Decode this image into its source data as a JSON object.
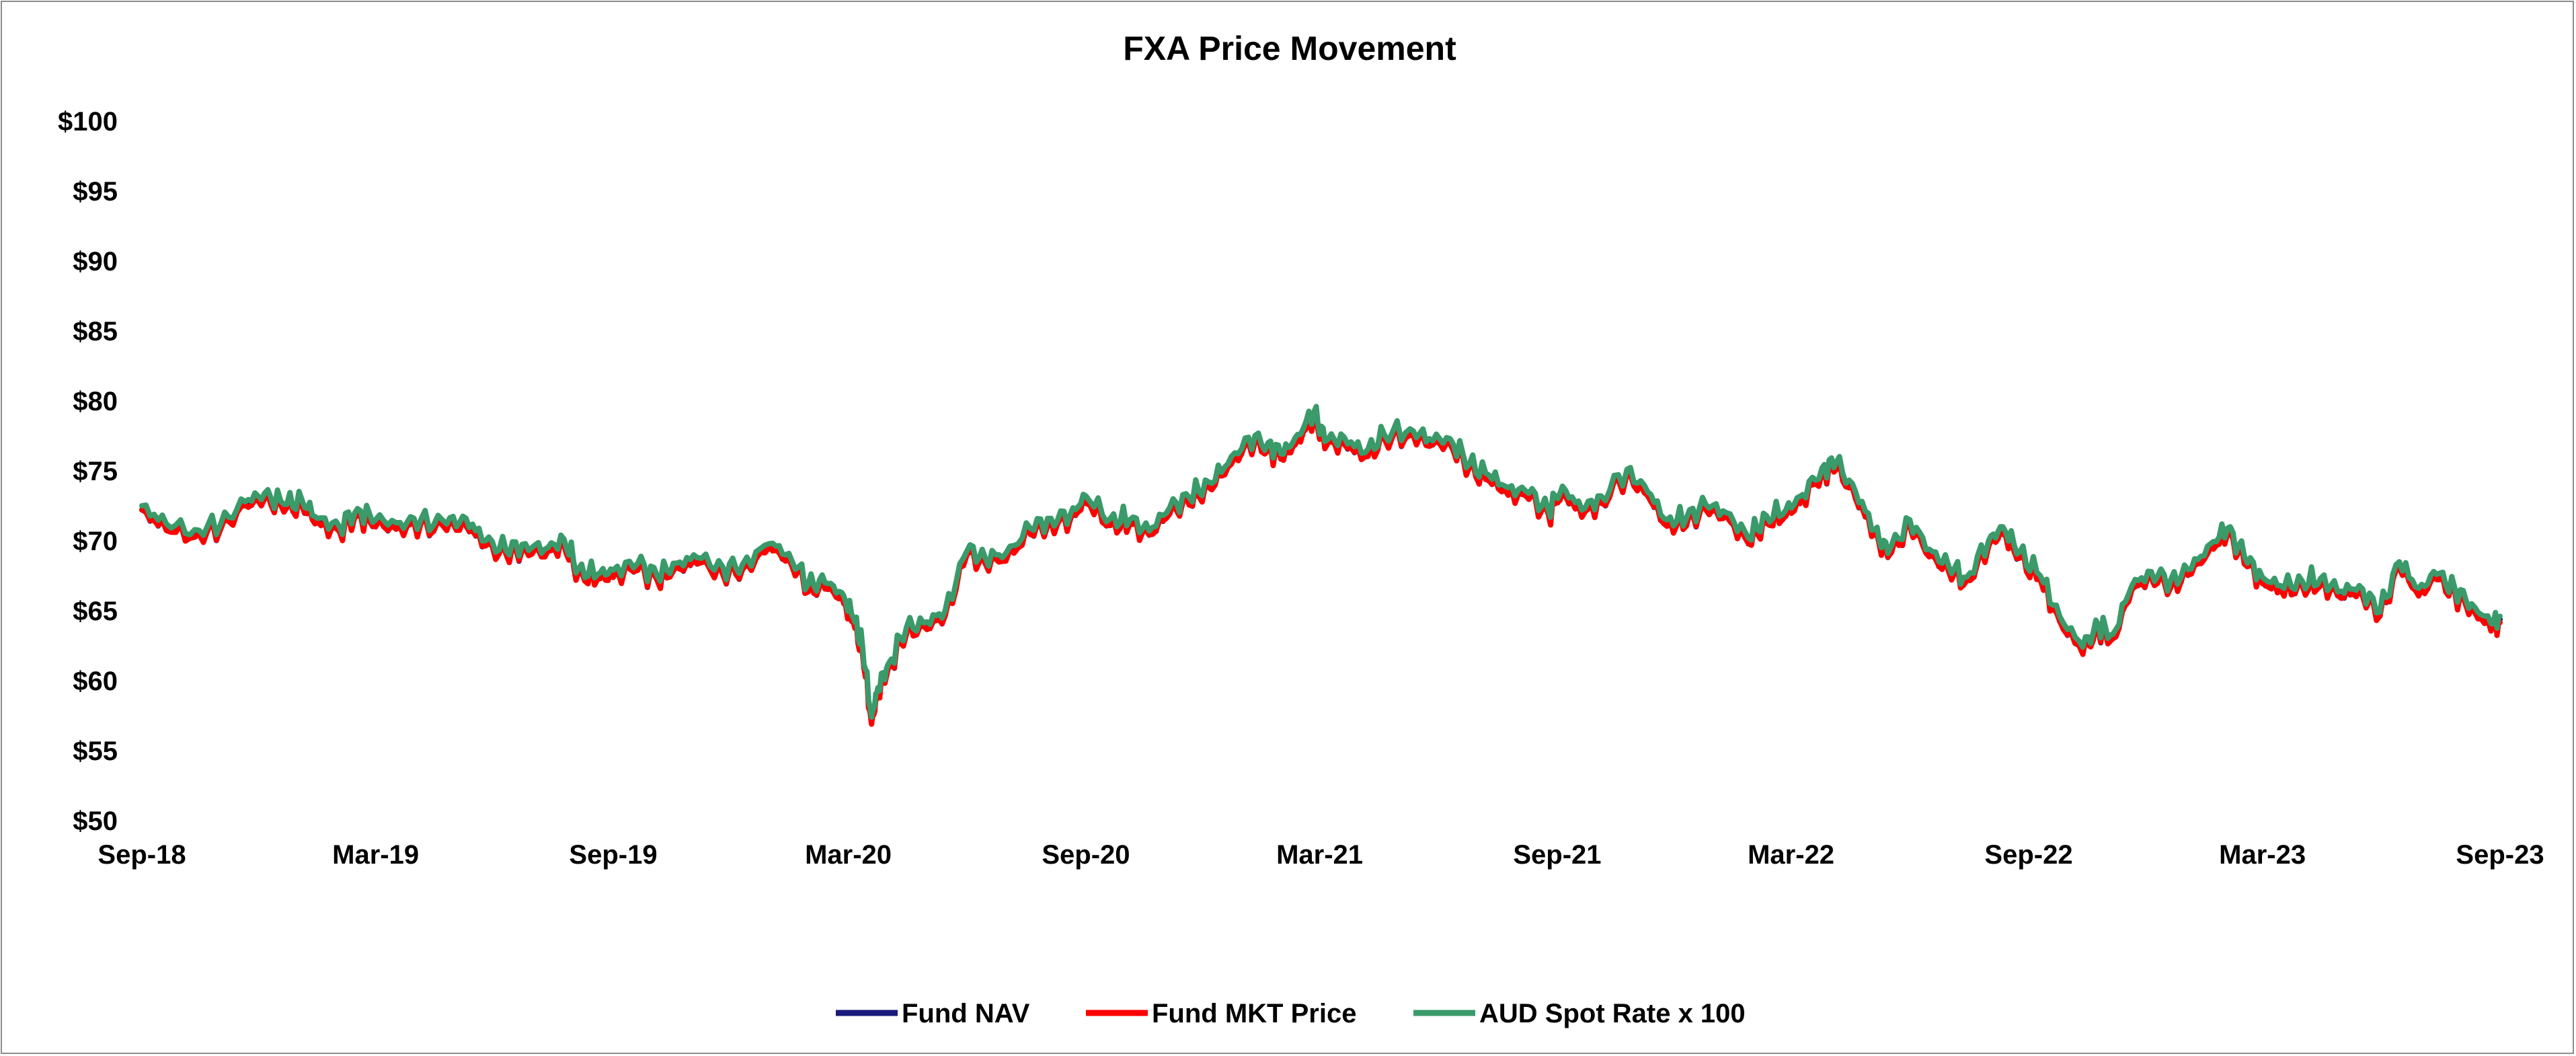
{
  "chart_data": {
    "type": "line",
    "title": "FXA Price Movement",
    "xlabel": "",
    "ylabel": "",
    "x_range": [
      "2018-09-01",
      "2023-09-01"
    ],
    "ylim": [
      50,
      100
    ],
    "y_ticks": [
      50,
      55,
      60,
      65,
      70,
      75,
      80,
      85,
      90,
      95,
      100
    ],
    "y_tick_labels": [
      "$50",
      "$55",
      "$60",
      "$65",
      "$70",
      "$75",
      "$80",
      "$85",
      "$90",
      "$95",
      "$100"
    ],
    "x_ticks": [
      "2018-09-01",
      "2019-03-01",
      "2019-09-01",
      "2020-03-01",
      "2020-09-01",
      "2021-03-01",
      "2021-09-01",
      "2022-03-01",
      "2022-09-01",
      "2023-03-01",
      "2023-09-01"
    ],
    "x_tick_labels": [
      "Sep-18",
      "Mar-19",
      "Sep-19",
      "Mar-20",
      "Sep-20",
      "Mar-21",
      "Sep-21",
      "Mar-22",
      "Sep-22",
      "Mar-23",
      "Sep-23"
    ],
    "grid": false,
    "legend_position": "bottom",
    "series": [
      {
        "name": "Fund NAV",
        "color": "#1a1a7a",
        "offset": -0.3,
        "points": []
      },
      {
        "name": "Fund MKT Price",
        "color": "#ff0000",
        "offset": -0.4,
        "points": []
      },
      {
        "name": "AUD Spot Rate x 100",
        "color": "#3a9a6a",
        "offset": 0,
        "points": [
          [
            "2018-09-01",
            72.5
          ],
          [
            "2018-09-20",
            71.2
          ],
          [
            "2018-10-12",
            70.8
          ],
          [
            "2018-11-01",
            71.2
          ],
          [
            "2018-11-20",
            72.8
          ],
          [
            "2018-12-05",
            73.4
          ],
          [
            "2018-12-20",
            72.6
          ],
          [
            "2019-01-03",
            72.9
          ],
          [
            "2019-01-15",
            71.6
          ],
          [
            "2019-02-01",
            71.0
          ],
          [
            "2019-02-15",
            72.3
          ],
          [
            "2019-03-01",
            71.5
          ],
          [
            "2019-03-20",
            71.3
          ],
          [
            "2019-04-05",
            71.5
          ],
          [
            "2019-04-25",
            71.2
          ],
          [
            "2019-05-10",
            71.6
          ],
          [
            "2019-05-25",
            70.0
          ],
          [
            "2019-06-10",
            69.3
          ],
          [
            "2019-06-25",
            69.8
          ],
          [
            "2019-07-10",
            69.4
          ],
          [
            "2019-07-25",
            70.1
          ],
          [
            "2019-08-05",
            68.0
          ],
          [
            "2019-08-20",
            67.6
          ],
          [
            "2019-09-01",
            67.9
          ],
          [
            "2019-09-20",
            68.4
          ],
          [
            "2019-10-05",
            67.5
          ],
          [
            "2019-10-20",
            68.4
          ],
          [
            "2019-11-05",
            68.8
          ],
          [
            "2019-11-25",
            68.1
          ],
          [
            "2019-12-10",
            68.3
          ],
          [
            "2019-12-31",
            69.8
          ],
          [
            "2020-01-15",
            69.1
          ],
          [
            "2020-01-30",
            66.9
          ],
          [
            "2020-02-12",
            67.0
          ],
          [
            "2020-02-25",
            66.3
          ],
          [
            "2020-03-05",
            64.5
          ],
          [
            "2020-03-12",
            62.5
          ],
          [
            "2020-03-19",
            57.4
          ],
          [
            "2020-03-24",
            59.5
          ],
          [
            "2020-04-01",
            61.2
          ],
          [
            "2020-04-15",
            63.8
          ],
          [
            "2020-05-01",
            64.2
          ],
          [
            "2020-05-15",
            65.0
          ],
          [
            "2020-06-01",
            69.3
          ],
          [
            "2020-06-15",
            68.8
          ],
          [
            "2020-07-01",
            69.1
          ],
          [
            "2020-07-20",
            70.9
          ],
          [
            "2020-08-05",
            71.6
          ],
          [
            "2020-08-20",
            71.9
          ],
          [
            "2020-09-01",
            73.2
          ],
          [
            "2020-09-20",
            71.6
          ],
          [
            "2020-10-05",
            71.5
          ],
          [
            "2020-10-20",
            70.7
          ],
          [
            "2020-11-05",
            72.4
          ],
          [
            "2020-11-20",
            73.1
          ],
          [
            "2020-12-05",
            74.2
          ],
          [
            "2020-12-20",
            75.5
          ],
          [
            "2021-01-05",
            77.4
          ],
          [
            "2021-01-20",
            77.0
          ],
          [
            "2021-02-01",
            76.2
          ],
          [
            "2021-02-12",
            77.6
          ],
          [
            "2021-02-25",
            79.3
          ],
          [
            "2021-03-05",
            77.1
          ],
          [
            "2021-03-20",
            77.4
          ],
          [
            "2021-04-05",
            76.3
          ],
          [
            "2021-04-20",
            77.6
          ],
          [
            "2021-05-10",
            78.0
          ],
          [
            "2021-05-25",
            77.3
          ],
          [
            "2021-06-10",
            77.3
          ],
          [
            "2021-06-25",
            75.5
          ],
          [
            "2021-07-10",
            74.7
          ],
          [
            "2021-07-25",
            73.8
          ],
          [
            "2021-08-10",
            73.4
          ],
          [
            "2021-08-25",
            72.2
          ],
          [
            "2021-09-05",
            73.9
          ],
          [
            "2021-09-20",
            72.2
          ],
          [
            "2021-10-05",
            73.2
          ],
          [
            "2021-10-25",
            75.1
          ],
          [
            "2021-11-10",
            73.5
          ],
          [
            "2021-11-25",
            71.5
          ],
          [
            "2021-12-10",
            71.6
          ],
          [
            "2021-12-25",
            72.6
          ],
          [
            "2022-01-10",
            72.0
          ],
          [
            "2022-01-27",
            70.2
          ],
          [
            "2022-02-10",
            71.8
          ],
          [
            "2022-02-25",
            72.2
          ],
          [
            "2022-03-10",
            73.3
          ],
          [
            "2022-03-25",
            75.2
          ],
          [
            "2022-04-05",
            75.6
          ],
          [
            "2022-04-20",
            73.5
          ],
          [
            "2022-05-05",
            70.8
          ],
          [
            "2022-05-15",
            69.1
          ],
          [
            "2022-06-01",
            71.5
          ],
          [
            "2022-06-16",
            69.4
          ],
          [
            "2022-07-01",
            68.2
          ],
          [
            "2022-07-15",
            67.4
          ],
          [
            "2022-08-01",
            70.0
          ],
          [
            "2022-08-12",
            71.0
          ],
          [
            "2022-08-25",
            69.2
          ],
          [
            "2022-09-10",
            67.5
          ],
          [
            "2022-09-25",
            64.6
          ],
          [
            "2022-10-13",
            62.4
          ],
          [
            "2022-10-25",
            64.0
          ],
          [
            "2022-11-05",
            63.3
          ],
          [
            "2022-11-20",
            66.8
          ],
          [
            "2022-12-05",
            67.8
          ],
          [
            "2022-12-20",
            67.2
          ],
          [
            "2023-01-05",
            68.0
          ],
          [
            "2023-01-20",
            69.8
          ],
          [
            "2023-02-02",
            70.9
          ],
          [
            "2023-02-15",
            68.9
          ],
          [
            "2023-03-01",
            67.4
          ],
          [
            "2023-03-15",
            66.8
          ],
          [
            "2023-04-01",
            67.1
          ],
          [
            "2023-04-15",
            67.3
          ],
          [
            "2023-05-01",
            66.4
          ],
          [
            "2023-05-15",
            66.8
          ],
          [
            "2023-05-31",
            64.9
          ],
          [
            "2023-06-15",
            68.5
          ],
          [
            "2023-06-30",
            66.6
          ],
          [
            "2023-07-14",
            67.6
          ],
          [
            "2023-07-28",
            66.6
          ],
          [
            "2023-08-10",
            65.5
          ],
          [
            "2023-08-25",
            64.1
          ],
          [
            "2023-09-01",
            64.6
          ]
        ]
      }
    ]
  }
}
